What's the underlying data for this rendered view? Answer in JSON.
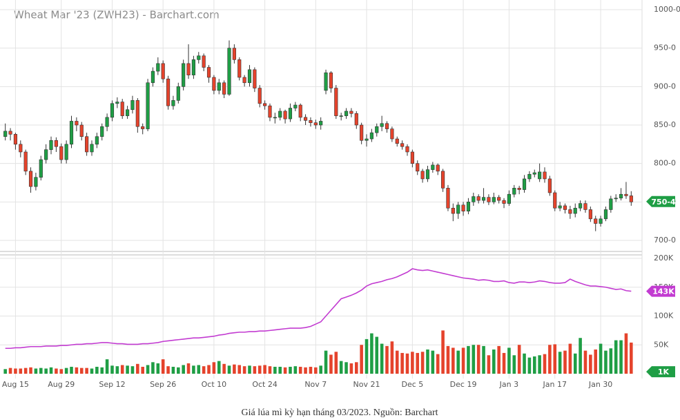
{
  "chart_data": {
    "type": "candlestick",
    "title": "Wheat Mar '23 (ZWH23) - Barchart.com",
    "caption": "Giá lúa mì kỳ hạn tháng 03/2023. Nguồn: Barchart",
    "up_color": "#1f9e45",
    "down_color": "#e5432c",
    "open_interest_color": "#c23bd1",
    "grid": true,
    "xlim": [
      -0.5,
      123.5
    ],
    "xticks": [
      {
        "value": 2,
        "label": "Aug 15"
      },
      {
        "value": 11,
        "label": "Aug 29"
      },
      {
        "value": 21,
        "label": "Sep 12"
      },
      {
        "value": 31,
        "label": "Sep 26"
      },
      {
        "value": 41,
        "label": "Oct 10"
      },
      {
        "value": 51,
        "label": "Oct 24"
      },
      {
        "value": 61,
        "label": "Nov 7"
      },
      {
        "value": 71,
        "label": "Nov 21"
      },
      {
        "value": 80,
        "label": "Dec 5"
      },
      {
        "value": 90,
        "label": "Dec 19"
      },
      {
        "value": 99,
        "label": "Jan 3"
      },
      {
        "value": 108,
        "label": "Jan 17"
      },
      {
        "value": 117,
        "label": "Jan 30"
      }
    ],
    "ylim": [
      700,
      1000
    ],
    "yticks": [
      {
        "value": 700,
        "label": "700-0"
      },
      {
        "value": 750,
        "label": "750-0"
      },
      {
        "value": 800,
        "label": "800-0"
      },
      {
        "value": 850,
        "label": "850-0"
      },
      {
        "value": 900,
        "label": "900-0"
      },
      {
        "value": 950,
        "label": "950-0"
      },
      {
        "value": 1000,
        "label": "1000-0"
      }
    ],
    "volume_ylim": [
      0,
      200000
    ],
    "volume_yticks": [
      {
        "value": 50000,
        "label": "50K"
      },
      {
        "value": 100000,
        "label": "100K"
      },
      {
        "value": 150000,
        "label": "150K"
      },
      {
        "value": 200000,
        "label": "200K"
      }
    ],
    "last_price": {
      "value": 750.5,
      "label": "750-4"
    },
    "last_open_interest": {
      "value": 143000,
      "label": "143K"
    },
    "last_volume": {
      "value": 1000,
      "label": "1K"
    },
    "candles": [
      [
        835,
        852,
        830,
        842
      ],
      [
        842,
        846,
        830,
        838
      ],
      [
        838,
        840,
        818,
        825
      ],
      [
        825,
        830,
        808,
        815
      ],
      [
        815,
        818,
        785,
        790
      ],
      [
        790,
        795,
        762,
        770
      ],
      [
        770,
        788,
        765,
        782
      ],
      [
        782,
        810,
        778,
        805
      ],
      [
        805,
        825,
        800,
        818
      ],
      [
        818,
        835,
        812,
        830
      ],
      [
        830,
        834,
        815,
        822
      ],
      [
        822,
        826,
        800,
        805
      ],
      [
        805,
        830,
        800,
        825
      ],
      [
        825,
        862,
        820,
        855
      ],
      [
        855,
        860,
        842,
        850
      ],
      [
        850,
        854,
        830,
        835
      ],
      [
        835,
        840,
        810,
        815
      ],
      [
        815,
        830,
        810,
        825
      ],
      [
        825,
        840,
        820,
        835
      ],
      [
        835,
        852,
        830,
        848
      ],
      [
        848,
        865,
        842,
        860
      ],
      [
        860,
        882,
        855,
        878
      ],
      [
        878,
        886,
        872,
        880
      ],
      [
        880,
        884,
        858,
        862
      ],
      [
        862,
        875,
        858,
        870
      ],
      [
        870,
        888,
        865,
        882
      ],
      [
        882,
        885,
        840,
        848
      ],
      [
        848,
        852,
        838,
        845
      ],
      [
        845,
        910,
        842,
        905
      ],
      [
        905,
        925,
        900,
        920
      ],
      [
        920,
        938,
        915,
        930
      ],
      [
        930,
        934,
        905,
        910
      ],
      [
        910,
        914,
        870,
        875
      ],
      [
        875,
        888,
        870,
        882
      ],
      [
        882,
        905,
        878,
        900
      ],
      [
        900,
        935,
        895,
        930
      ],
      [
        930,
        955,
        910,
        915
      ],
      [
        915,
        940,
        910,
        935
      ],
      [
        935,
        945,
        930,
        940
      ],
      [
        940,
        943,
        920,
        925
      ],
      [
        925,
        928,
        905,
        912
      ],
      [
        912,
        915,
        890,
        895
      ],
      [
        895,
        910,
        890,
        905
      ],
      [
        905,
        908,
        885,
        890
      ],
      [
        890,
        960,
        888,
        950
      ],
      [
        950,
        955,
        930,
        935
      ],
      [
        935,
        938,
        908,
        912
      ],
      [
        912,
        915,
        900,
        905
      ],
      [
        905,
        928,
        900,
        922
      ],
      [
        922,
        925,
        893,
        898
      ],
      [
        898,
        902,
        873,
        878
      ],
      [
        878,
        882,
        870,
        875
      ],
      [
        875,
        878,
        855,
        860
      ],
      [
        860,
        866,
        852,
        860
      ],
      [
        860,
        872,
        856,
        868
      ],
      [
        868,
        870,
        852,
        858
      ],
      [
        858,
        878,
        854,
        872
      ],
      [
        872,
        880,
        868,
        876
      ],
      [
        876,
        878,
        855,
        860
      ],
      [
        860,
        864,
        850,
        856
      ],
      [
        856,
        860,
        848,
        853
      ],
      [
        853,
        857,
        845,
        850
      ],
      [
        850,
        860,
        844,
        855
      ],
      [
        895,
        922,
        890,
        918
      ],
      [
        918,
        920,
        892,
        898
      ],
      [
        898,
        902,
        858,
        862
      ],
      [
        862,
        866,
        856,
        862
      ],
      [
        862,
        872,
        858,
        868
      ],
      [
        868,
        872,
        860,
        865
      ],
      [
        865,
        868,
        845,
        850
      ],
      [
        850,
        853,
        825,
        830
      ],
      [
        830,
        838,
        822,
        832
      ],
      [
        832,
        845,
        828,
        840
      ],
      [
        840,
        852,
        835,
        848
      ],
      [
        848,
        862,
        842,
        852
      ],
      [
        852,
        855,
        840,
        845
      ],
      [
        845,
        848,
        828,
        832
      ],
      [
        832,
        835,
        822,
        826
      ],
      [
        826,
        830,
        818,
        822
      ],
      [
        822,
        825,
        810,
        815
      ],
      [
        815,
        818,
        795,
        800
      ],
      [
        800,
        804,
        785,
        790
      ],
      [
        790,
        793,
        775,
        780
      ],
      [
        780,
        797,
        776,
        792
      ],
      [
        792,
        802,
        788,
        798
      ],
      [
        798,
        800,
        785,
        790
      ],
      [
        790,
        793,
        763,
        768
      ],
      [
        768,
        772,
        738,
        742
      ],
      [
        742,
        748,
        725,
        735
      ],
      [
        735,
        750,
        728,
        746
      ],
      [
        746,
        750,
        732,
        738
      ],
      [
        738,
        755,
        734,
        750
      ],
      [
        750,
        762,
        745,
        757
      ],
      [
        757,
        760,
        748,
        752
      ],
      [
        752,
        768,
        748,
        756
      ],
      [
        756,
        760,
        746,
        750
      ],
      [
        750,
        762,
        747,
        756
      ],
      [
        756,
        759,
        748,
        752
      ],
      [
        752,
        755,
        742,
        748
      ],
      [
        748,
        765,
        745,
        760
      ],
      [
        760,
        772,
        756,
        768
      ],
      [
        768,
        771,
        760,
        766
      ],
      [
        766,
        785,
        762,
        780
      ],
      [
        780,
        790,
        776,
        786
      ],
      [
        786,
        792,
        782,
        788
      ],
      [
        780,
        800,
        776,
        789
      ],
      [
        789,
        795,
        775,
        780
      ],
      [
        780,
        784,
        758,
        762
      ],
      [
        762,
        765,
        738,
        742
      ],
      [
        742,
        750,
        738,
        745
      ],
      [
        745,
        748,
        735,
        740
      ],
      [
        740,
        745,
        728,
        735
      ],
      [
        735,
        748,
        730,
        742
      ],
      [
        742,
        752,
        738,
        748
      ],
      [
        748,
        752,
        736,
        740
      ],
      [
        740,
        744,
        724,
        728
      ],
      [
        728,
        732,
        712,
        722
      ],
      [
        722,
        732,
        718,
        728
      ],
      [
        728,
        744,
        725,
        740
      ],
      [
        740,
        758,
        736,
        754
      ],
      [
        754,
        760,
        750,
        755
      ],
      [
        755,
        768,
        752,
        760
      ],
      [
        760,
        776,
        754,
        758
      ],
      [
        758,
        764,
        745,
        750
      ]
    ],
    "volume": [
      8000,
      10000,
      9000,
      9000,
      10000,
      11000,
      9000,
      10000,
      9000,
      11000,
      9000,
      8000,
      10000,
      12000,
      11000,
      10000,
      10000,
      9000,
      12000,
      11000,
      25000,
      14000,
      13000,
      15000,
      14000,
      13000,
      17000,
      12000,
      15000,
      20000,
      18000,
      25000,
      13000,
      12000,
      11000,
      15000,
      18000,
      14000,
      15000,
      13000,
      15000,
      20000,
      22000,
      17000,
      14000,
      16000,
      15000,
      13000,
      14000,
      13000,
      14000,
      15000,
      13000,
      12000,
      12000,
      11000,
      12000,
      13000,
      12000,
      11000,
      12000,
      11000,
      14000,
      40000,
      33000,
      38000,
      22000,
      20000,
      18000,
      20000,
      50000,
      60000,
      70000,
      64000,
      52000,
      48000,
      56000,
      40000,
      36000,
      35000,
      38000,
      36000,
      38000,
      42000,
      40000,
      34000,
      75000,
      48000,
      45000,
      40000,
      45000,
      48000,
      50000,
      50000,
      48000,
      32000,
      42000,
      48000,
      36000,
      45000,
      32000,
      50000,
      35000,
      28000,
      30000,
      32000,
      34000,
      50000,
      51000,
      38000,
      40000,
      52000,
      35000,
      62000,
      40000,
      33000,
      42000,
      52000,
      40000,
      44000,
      58000,
      58000,
      70000,
      54000
    ],
    "open_interest": [
      44000,
      44000,
      45000,
      45000,
      46000,
      47000,
      47000,
      47000,
      48000,
      48000,
      48000,
      49000,
      49000,
      50000,
      51000,
      51000,
      52000,
      52000,
      53000,
      54000,
      54000,
      53000,
      52000,
      52000,
      51000,
      51000,
      51000,
      52000,
      52000,
      53000,
      54000,
      56000,
      57000,
      58000,
      59000,
      60000,
      61000,
      62000,
      62000,
      63000,
      64000,
      65000,
      67000,
      68000,
      70000,
      71000,
      72000,
      72000,
      73000,
      73000,
      74000,
      74000,
      75000,
      76000,
      77000,
      78000,
      79000,
      79000,
      79000,
      80000,
      82000,
      86000,
      90000,
      100000,
      110000,
      120000,
      130000,
      133000,
      136000,
      140000,
      145000,
      152000,
      156000,
      158000,
      160000,
      163000,
      165000,
      168000,
      172000,
      176000,
      182000,
      180000,
      179000,
      180000,
      178000,
      176000,
      174000,
      172000,
      170000,
      168000,
      166000,
      165000,
      164000,
      162000,
      163000,
      162000,
      160000,
      160000,
      161000,
      158000,
      157000,
      159000,
      159000,
      158000,
      159000,
      161000,
      160000,
      158000,
      157000,
      157000,
      158000,
      164000,
      160000,
      157000,
      154000,
      152000,
      152000,
      151000,
      150000,
      148000,
      146000,
      147000,
      144000,
      143000
    ]
  }
}
